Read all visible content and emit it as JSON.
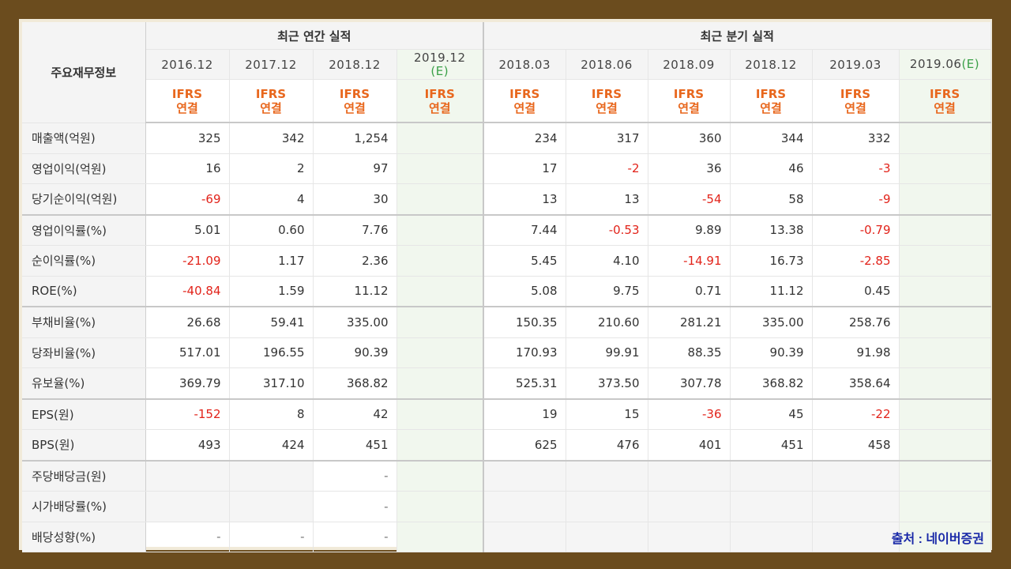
{
  "table": {
    "corner_label": "주요재무정보",
    "group_annual": "최근 연간 실적",
    "group_quarterly": "최근 분기 실적",
    "ifrs_line1": "IFRS",
    "ifrs_line2": "연결",
    "annual_periods": [
      "2016.12",
      "2017.12",
      "2018.12",
      "2019.12",
      "(E)"
    ],
    "quarterly_periods": [
      "2018.03",
      "2018.06",
      "2018.09",
      "2018.12",
      "2019.03",
      "2019.06",
      "(E)"
    ],
    "rows": [
      {
        "label": "매출액(억원)",
        "annual": [
          "325",
          "342",
          "1,254"
        ],
        "quarterly": [
          "234",
          "317",
          "360",
          "344",
          "332"
        ]
      },
      {
        "label": "영업이익(억원)",
        "annual": [
          "16",
          "2",
          "97"
        ],
        "quarterly": [
          "17",
          "-2",
          "36",
          "46",
          "-3"
        ]
      },
      {
        "label": "당기순이익(억원)",
        "annual": [
          "-69",
          "4",
          "30"
        ],
        "quarterly": [
          "13",
          "13",
          "-54",
          "58",
          "-9"
        ]
      },
      {
        "label": "영업이익률(%)",
        "annual": [
          "5.01",
          "0.60",
          "7.76"
        ],
        "quarterly": [
          "7.44",
          "-0.53",
          "9.89",
          "13.38",
          "-0.79"
        ]
      },
      {
        "label": "순이익률(%)",
        "annual": [
          "-21.09",
          "1.17",
          "2.36"
        ],
        "quarterly": [
          "5.45",
          "4.10",
          "-14.91",
          "16.73",
          "-2.85"
        ]
      },
      {
        "label": "ROE(%)",
        "annual": [
          "-40.84",
          "1.59",
          "11.12"
        ],
        "quarterly": [
          "5.08",
          "9.75",
          "0.71",
          "11.12",
          "0.45"
        ]
      },
      {
        "label": "부채비율(%)",
        "annual": [
          "26.68",
          "59.41",
          "335.00"
        ],
        "quarterly": [
          "150.35",
          "210.60",
          "281.21",
          "335.00",
          "258.76"
        ]
      },
      {
        "label": "당좌비율(%)",
        "annual": [
          "517.01",
          "196.55",
          "90.39"
        ],
        "quarterly": [
          "170.93",
          "99.91",
          "88.35",
          "90.39",
          "91.98"
        ]
      },
      {
        "label": "유보율(%)",
        "annual": [
          "369.79",
          "317.10",
          "368.82"
        ],
        "quarterly": [
          "525.31",
          "373.50",
          "307.78",
          "368.82",
          "358.64"
        ]
      },
      {
        "label": "EPS(원)",
        "annual": [
          "-152",
          "8",
          "42"
        ],
        "quarterly": [
          "19",
          "15",
          "-36",
          "45",
          "-22"
        ]
      },
      {
        "label": "BPS(원)",
        "annual": [
          "493",
          "424",
          "451"
        ],
        "quarterly": [
          "625",
          "476",
          "401",
          "451",
          "458"
        ]
      },
      {
        "label": "주당배당금(원)",
        "annual": [
          "",
          "",
          "-"
        ],
        "quarterly": [
          "",
          "",
          "",
          "",
          ""
        ]
      },
      {
        "label": "시가배당률(%)",
        "annual": [
          "",
          "",
          "-"
        ],
        "quarterly": [
          "",
          "",
          "",
          "",
          ""
        ]
      },
      {
        "label": "배당성향(%)",
        "annual": [
          "-",
          "-",
          "-"
        ],
        "quarterly": [
          "",
          "",
          "",
          "",
          ""
        ]
      }
    ]
  },
  "source": "출처 : 네이버증권",
  "colors": {
    "negative": "#e2231a",
    "ifrs": "#e8671d",
    "estimate_bg": "#f1f7ee",
    "estimate_mark": "#3aa048",
    "frame": "#6b4c1e",
    "source_text": "#1a2aa8"
  }
}
